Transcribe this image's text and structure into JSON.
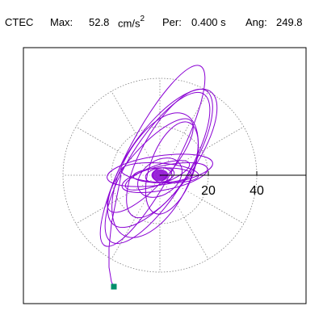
{
  "header": {
    "station": "CTEC",
    "max_label": "Max:",
    "max_value": "52.8",
    "max_unit_base": "cm/s",
    "max_unit_exp": "2",
    "period_label": "Per:",
    "period_value": "0.400 s",
    "angle_label": "Ang:",
    "angle_value": "249.8"
  },
  "chart_data": {
    "type": "line",
    "title": "",
    "xlabel": "",
    "ylabel": "",
    "units": "cm/s2",
    "polar_grid": {
      "rings": [
        20,
        40
      ],
      "spokes_deg": 30,
      "grid": true,
      "style": "dotted"
    },
    "axis_ticks": [
      {
        "value": 20,
        "label": "20"
      },
      {
        "value": 40,
        "label": "40"
      }
    ],
    "xlim": [
      -55,
      55
    ],
    "ylim": [
      -55,
      55
    ],
    "max_value": 52.8,
    "angle_deg": 249.8,
    "orbit_ellipses": [
      {
        "cx": -3,
        "cy": 8,
        "a": 42,
        "b": 10,
        "rot": 62
      },
      {
        "cx": -1,
        "cy": 3,
        "a": 36,
        "b": 12,
        "rot": 58
      },
      {
        "cx": 1,
        "cy": 7,
        "a": 34,
        "b": 13,
        "rot": 54
      },
      {
        "cx": 4,
        "cy": 9,
        "a": 30,
        "b": 11,
        "rot": 60
      },
      {
        "cx": -2,
        "cy": 0,
        "a": 28,
        "b": 14,
        "rot": 63
      },
      {
        "cx": 0,
        "cy": 2,
        "a": 22,
        "b": 6,
        "rot": 8
      },
      {
        "cx": 2,
        "cy": -1,
        "a": 18,
        "b": 5,
        "rot": 12
      },
      {
        "cx": 0,
        "cy": 1,
        "a": 16,
        "b": 4,
        "rot": -4
      },
      {
        "cx": -1,
        "cy": 0,
        "a": 14,
        "b": 4,
        "rot": 20
      },
      {
        "cx": 1,
        "cy": 0,
        "a": 12,
        "b": 3,
        "rot": 2
      },
      {
        "cx": 0,
        "cy": -1,
        "a": 10,
        "b": 7,
        "rot": 35
      },
      {
        "cx": 0,
        "cy": 0,
        "a": 6,
        "b": 3,
        "rot": 10
      },
      {
        "cx": 1,
        "cy": 0,
        "a": 4,
        "b": 3,
        "rot": 0
      },
      {
        "cx": -4,
        "cy": 4,
        "a": 25,
        "b": 8,
        "rot": 48
      },
      {
        "cx": 5,
        "cy": 3,
        "a": 20,
        "b": 9,
        "rot": 70
      }
    ],
    "trace_tail": [
      [
        -16,
        0
      ],
      [
        -18,
        -10
      ],
      [
        -20,
        -20
      ],
      [
        -21,
        -30
      ],
      [
        -21,
        -38
      ],
      [
        -20,
        -44
      ],
      [
        -19,
        -46
      ]
    ],
    "end_marker": {
      "x": -19,
      "y": -46
    },
    "colors": {
      "trace": "#8a00d4",
      "marker": "#008f6b",
      "grid": "#7f7f7f",
      "frame": "#000000"
    }
  }
}
